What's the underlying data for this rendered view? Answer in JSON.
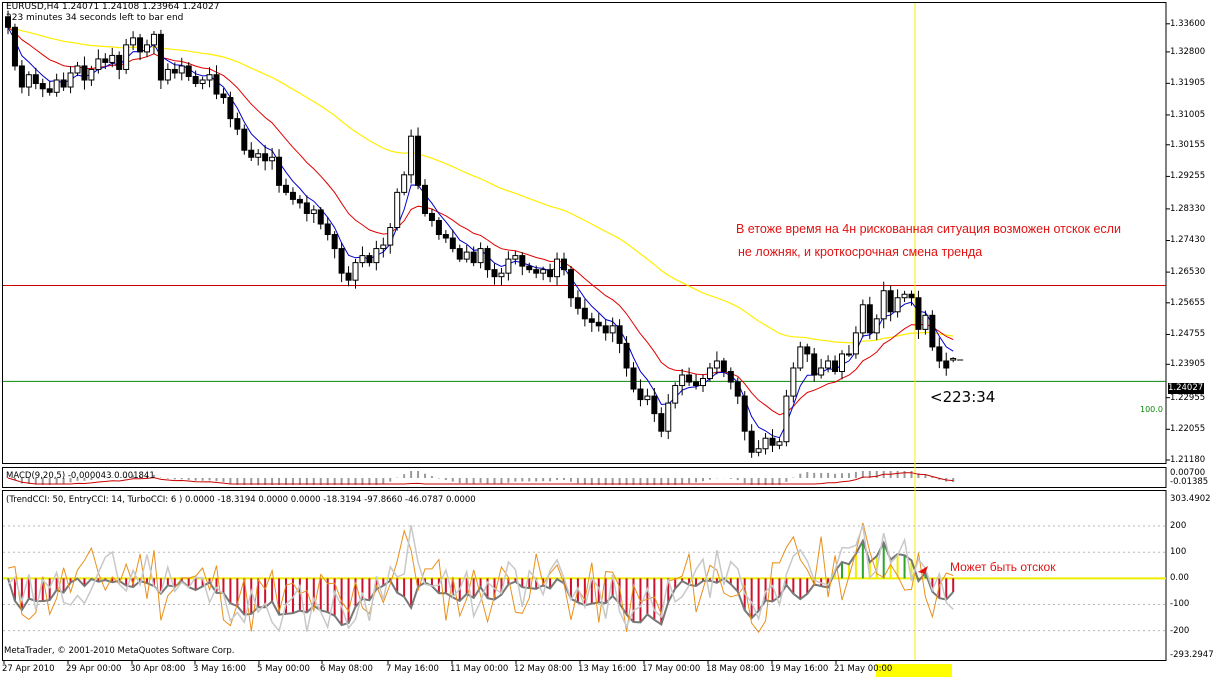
{
  "header": {
    "symbol_line": "EURUSD,H4  1.24071 1.24108 1.23964 1.24027",
    "timer_line": "223 minutes 34 seconds left to bar end"
  },
  "price_axis": {
    "ticks": [
      "1.33600",
      "1.32800",
      "1.31905",
      "1.31005",
      "1.30155",
      "1.29255",
      "1.28330",
      "1.27430",
      "1.26530",
      "1.25655",
      "1.24755",
      "1.23905",
      "1.22955",
      "1.22055",
      "1.21180"
    ],
    "current_price": "1.24027",
    "level_label": "100.0"
  },
  "countdown": "<223:34",
  "annotations": {
    "main_line1": "В етоже время на 4н рискованная ситуация возможен отскок если",
    "main_line2": "не ложняк, и кроткосрочная смена тренда",
    "cci_note": "Может быть отскок"
  },
  "macd": {
    "label": "MACD(9,20,5) -0.000043 0.001841",
    "axis": [
      "0.00700",
      "-0.01385"
    ]
  },
  "cci": {
    "label": "(TrendCCI: 50, EntryCCI: 14, TurboCCI: 6 )  0.0000 -18.3194 0.0000 0.0000 -18.3194 -97.8660 -46.0787 0.0000",
    "axis": [
      "303.4902",
      "200",
      "100",
      "0.00",
      "-100",
      "-200",
      "-293.2947"
    ]
  },
  "footer": {
    "copyright": "MetaTrader, © 2001-2010 MetaQuotes Software Corp."
  },
  "time_axis": [
    "27 Apr 2010",
    "29 Apr 00:00",
    "30 Apr 08:00",
    "3 May 16:00",
    "5 May 00:00",
    "6 May 08:00",
    "7 May 16:00",
    "11 May 00:00",
    "12 May 08:00",
    "13 May 16:00",
    "17 May 00:00",
    "18 May 08:00",
    "19 May 16:00",
    "21 May 00:00"
  ],
  "colors": {
    "fast_ma": "#0000cc",
    "slow_ma": "#e00000",
    "long_ma": "#ffee00",
    "support_line": "#0a8a0a",
    "resistance_line": "#cc0000",
    "cursor_line": "#ffee00",
    "cci_hist": "#cc1030",
    "cci_hist_pos": "#eeee00",
    "cci_trend": "#777777",
    "cci_entry": "#e8901a",
    "cci_turbo": "#c8c8c8"
  },
  "chart_data": {
    "type": "candlestick",
    "symbol": "EURUSD",
    "timeframe": "H4",
    "ohlc_current": {
      "open": 1.24071,
      "high": 1.24108,
      "low": 1.23964,
      "close": 1.24027
    },
    "ylim": [
      1.2118,
      1.3405
    ],
    "resistance_level": 1.2615,
    "support_level": 1.2342,
    "closes": [
      1.335,
      1.324,
      1.318,
      1.3215,
      1.319,
      1.3175,
      1.3165,
      1.32,
      1.318,
      1.322,
      1.324,
      1.32,
      1.323,
      1.326,
      1.325,
      1.327,
      1.323,
      1.33,
      1.332,
      1.328,
      1.33,
      1.333,
      1.32,
      1.323,
      1.322,
      1.324,
      1.321,
      1.319,
      1.32,
      1.3215,
      1.316,
      1.315,
      1.309,
      1.306,
      1.3,
      1.298,
      1.299,
      1.297,
      1.298,
      1.29,
      1.288,
      1.286,
      1.285,
      1.282,
      1.283,
      1.279,
      1.276,
      1.272,
      1.265,
      1.263,
      1.268,
      1.27,
      1.268,
      1.272,
      1.273,
      1.278,
      1.288,
      1.293,
      1.304,
      1.29,
      1.282,
      1.28,
      1.276,
      1.275,
      1.272,
      1.269,
      1.271,
      1.268,
      1.272,
      1.266,
      1.264,
      1.265,
      1.269,
      1.27,
      1.267,
      1.266,
      1.265,
      1.266,
      1.264,
      1.269,
      1.266,
      1.258,
      1.255,
      1.252,
      1.251,
      1.25,
      1.248,
      1.25,
      1.245,
      1.238,
      1.232,
      1.229,
      1.23,
      1.225,
      1.22,
      1.228,
      1.233,
      1.236,
      1.234,
      1.233,
      1.235,
      1.238,
      1.24,
      1.237,
      1.234,
      1.23,
      1.22,
      1.214,
      1.215,
      1.218,
      1.216,
      1.217,
      1.23,
      1.238,
      1.244,
      1.242,
      1.236,
      1.238,
      1.24,
      1.237,
      1.242,
      1.242,
      1.248,
      1.256,
      1.248,
      1.252,
      1.26,
      1.254,
      1.258,
      1.259,
      1.258,
      1.249,
      1.253,
      1.244,
      1.24,
      1.238,
      1.2403
    ]
  }
}
